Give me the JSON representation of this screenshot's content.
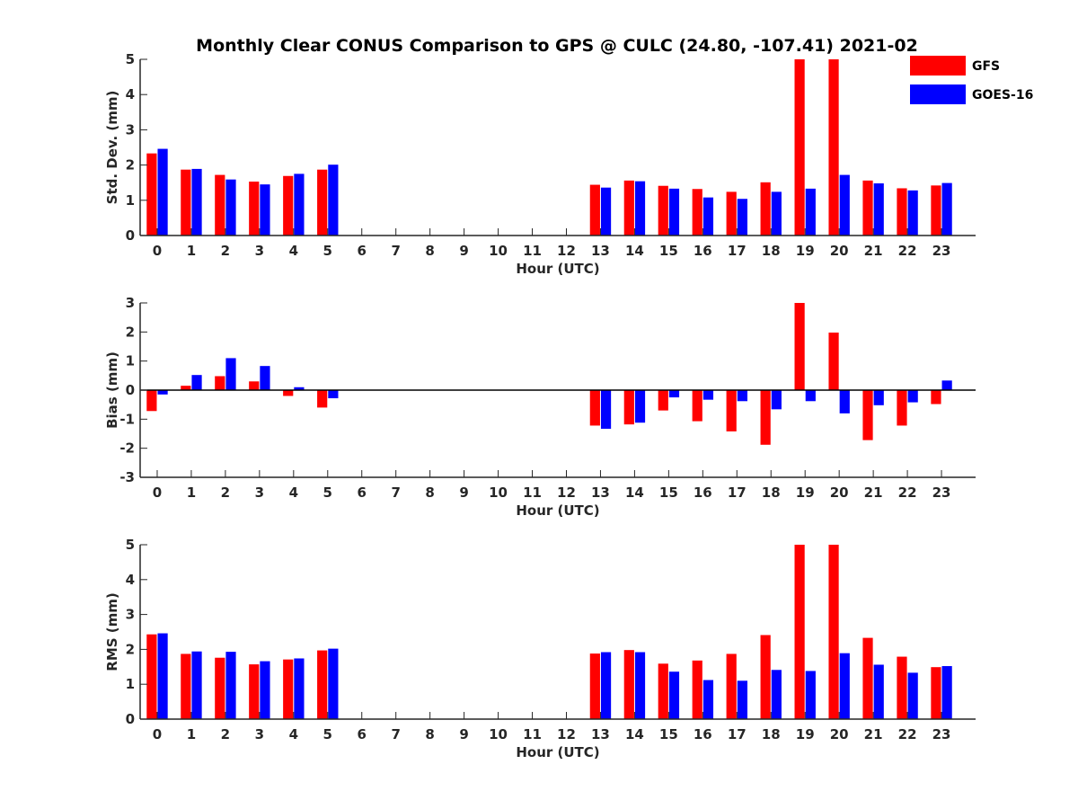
{
  "title": "Monthly Clear CONUS Comparison to GPS @ CULC (24.80, -107.41) 2021-02",
  "legend": {
    "placement": "top-right",
    "entries": [
      {
        "name": "GFS",
        "color": "#ff0000"
      },
      {
        "name": "GOES-16",
        "color": "#0000ff"
      }
    ]
  },
  "chart_data": [
    {
      "type": "bar",
      "xlabel": "Hour (UTC)",
      "ylabel": "Std. Dev. (mm)",
      "ylim": [
        0,
        5
      ],
      "yticks": [
        0,
        1,
        2,
        3,
        4,
        5
      ],
      "grid": false,
      "categories": [
        "0",
        "1",
        "2",
        "3",
        "4",
        "5",
        "6",
        "7",
        "8",
        "9",
        "10",
        "11",
        "12",
        "13",
        "14",
        "15",
        "16",
        "17",
        "18",
        "19",
        "20",
        "21",
        "22",
        "23"
      ],
      "series": [
        {
          "name": "GFS",
          "color": "#ff0000",
          "values": [
            2.33,
            1.87,
            1.72,
            1.53,
            1.69,
            1.87,
            null,
            null,
            null,
            null,
            null,
            null,
            null,
            1.44,
            1.56,
            1.41,
            1.32,
            1.24,
            1.51,
            5.0,
            5.0,
            1.56,
            1.34,
            1.42
          ]
        },
        {
          "name": "GOES-16",
          "color": "#0000ff",
          "values": [
            2.46,
            1.89,
            1.59,
            1.45,
            1.75,
            2.01,
            null,
            null,
            null,
            null,
            null,
            null,
            null,
            1.36,
            1.54,
            1.33,
            1.08,
            1.04,
            1.24,
            1.33,
            1.72,
            1.48,
            1.28,
            1.49
          ]
        }
      ]
    },
    {
      "type": "bar",
      "xlabel": "Hour (UTC)",
      "ylabel": "Bias (mm)",
      "ylim": [
        -3,
        3
      ],
      "yticks": [
        -3,
        -2,
        -1,
        0,
        1,
        2,
        3
      ],
      "grid": false,
      "zero_line": true,
      "categories": [
        "0",
        "1",
        "2",
        "3",
        "4",
        "5",
        "6",
        "7",
        "8",
        "9",
        "10",
        "11",
        "12",
        "13",
        "14",
        "15",
        "16",
        "17",
        "18",
        "19",
        "20",
        "21",
        "22",
        "23"
      ],
      "series": [
        {
          "name": "GFS",
          "color": "#ff0000",
          "values": [
            -0.72,
            0.15,
            0.48,
            0.3,
            -0.2,
            -0.6,
            null,
            null,
            null,
            null,
            null,
            null,
            null,
            -1.22,
            -1.18,
            -0.7,
            -1.07,
            -1.42,
            -1.88,
            3.0,
            1.98,
            -1.72,
            -1.22,
            -0.48
          ]
        },
        {
          "name": "GOES-16",
          "color": "#0000ff",
          "values": [
            -0.15,
            0.52,
            1.1,
            0.83,
            0.1,
            -0.28,
            null,
            null,
            null,
            null,
            null,
            null,
            null,
            -1.33,
            -1.12,
            -0.25,
            -0.33,
            -0.38,
            -0.66,
            -0.38,
            -0.8,
            -0.52,
            -0.42,
            0.33
          ]
        }
      ]
    },
    {
      "type": "bar",
      "xlabel": "Hour (UTC)",
      "ylabel": "RMS (mm)",
      "ylim": [
        0,
        5
      ],
      "yticks": [
        0,
        1,
        2,
        3,
        4,
        5
      ],
      "grid": false,
      "categories": [
        "0",
        "1",
        "2",
        "3",
        "4",
        "5",
        "6",
        "7",
        "8",
        "9",
        "10",
        "11",
        "12",
        "13",
        "14",
        "15",
        "16",
        "17",
        "18",
        "19",
        "20",
        "21",
        "22",
        "23"
      ],
      "series": [
        {
          "name": "GFS",
          "color": "#ff0000",
          "values": [
            2.43,
            1.87,
            1.76,
            1.57,
            1.71,
            1.97,
            null,
            null,
            null,
            null,
            null,
            null,
            null,
            1.88,
            1.98,
            1.59,
            1.68,
            1.87,
            2.41,
            5.0,
            5.0,
            2.33,
            1.79,
            1.49
          ]
        },
        {
          "name": "GOES-16",
          "color": "#0000ff",
          "values": [
            2.46,
            1.94,
            1.93,
            1.66,
            1.74,
            2.02,
            null,
            null,
            null,
            null,
            null,
            null,
            null,
            1.92,
            1.92,
            1.36,
            1.12,
            1.1,
            1.41,
            1.38,
            1.89,
            1.56,
            1.33,
            1.52
          ]
        }
      ]
    }
  ]
}
